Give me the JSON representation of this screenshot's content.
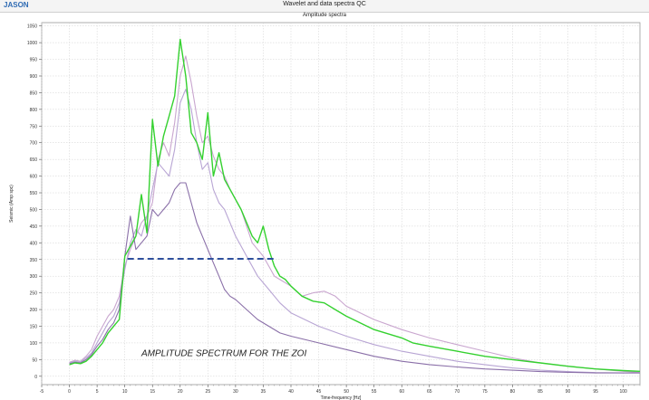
{
  "window": {
    "logo": "JASON",
    "title": "Wavelet and data spectra QC"
  },
  "chart_data": {
    "type": "line",
    "title": "Amplitude spectra",
    "xlabel": "Time-frequency [Hz]",
    "ylabel": "Seismic  (Amp spc)",
    "xlim": [
      -5,
      103
    ],
    "ylim": [
      -25,
      1060
    ],
    "xticks": [
      -5,
      0,
      5,
      10,
      15,
      20,
      25,
      30,
      35,
      40,
      45,
      50,
      55,
      60,
      65,
      70,
      75,
      80,
      85,
      90,
      95,
      100
    ],
    "yticks": [
      0,
      50,
      100,
      150,
      200,
      250,
      300,
      350,
      400,
      450,
      500,
      550,
      600,
      650,
      700,
      750,
      800,
      850,
      900,
      950,
      1000,
      1050
    ],
    "grid": true,
    "series": [
      {
        "color": "#c9a6cf",
        "x": [
          0,
          1,
          2,
          3,
          4,
          5,
          6,
          7,
          8,
          9,
          10,
          11,
          12,
          13,
          14,
          15,
          16,
          17,
          18,
          19,
          20,
          21,
          22,
          23,
          24,
          25,
          26,
          27,
          28,
          29,
          30,
          31,
          32,
          33,
          34,
          35,
          36,
          37,
          38,
          40,
          42,
          44,
          46,
          48,
          50,
          55,
          60,
          65,
          70,
          75,
          80,
          85,
          90,
          95,
          100,
          103
        ],
        "y": [
          42,
          48,
          45,
          60,
          80,
          120,
          150,
          180,
          200,
          240,
          330,
          380,
          420,
          460,
          480,
          520,
          650,
          700,
          660,
          760,
          900,
          960,
          880,
          780,
          700,
          720,
          660,
          620,
          600,
          560,
          530,
          500,
          450,
          400,
          380,
          360,
          330,
          300,
          290,
          270,
          240,
          250,
          255,
          240,
          210,
          170,
          140,
          115,
          95,
          75,
          55,
          40,
          30,
          22,
          15,
          12
        ]
      },
      {
        "color": "#b8a5d4",
        "x": [
          0,
          1,
          2,
          3,
          4,
          5,
          6,
          7,
          8,
          9,
          10,
          11,
          12,
          13,
          14,
          15,
          16,
          17,
          18,
          19,
          20,
          21,
          22,
          23,
          24,
          25,
          26,
          27,
          28,
          29,
          30,
          32,
          34,
          36,
          38,
          40,
          45,
          50,
          55,
          60,
          65,
          70,
          75,
          80,
          85,
          90,
          95,
          100,
          103
        ],
        "y": [
          40,
          45,
          42,
          55,
          70,
          100,
          130,
          160,
          180,
          220,
          320,
          400,
          440,
          420,
          480,
          560,
          640,
          620,
          600,
          680,
          820,
          860,
          800,
          700,
          620,
          640,
          560,
          520,
          500,
          460,
          420,
          360,
          300,
          260,
          220,
          190,
          150,
          120,
          95,
          75,
          60,
          45,
          35,
          25,
          18,
          14,
          11,
          10,
          10
        ]
      },
      {
        "color": "#8a6fa8",
        "x": [
          0,
          1,
          2,
          3,
          4,
          5,
          6,
          7,
          8,
          9,
          10,
          11,
          12,
          13,
          14,
          15,
          16,
          17,
          18,
          19,
          20,
          21,
          22,
          23,
          24,
          25,
          26,
          27,
          28,
          29,
          30,
          32,
          34,
          36,
          38,
          40,
          45,
          50,
          55,
          60,
          65,
          70,
          75,
          80,
          85,
          90,
          95,
          100,
          103
        ],
        "y": [
          38,
          42,
          40,
          50,
          65,
          90,
          110,
          140,
          160,
          200,
          360,
          480,
          380,
          400,
          420,
          500,
          480,
          500,
          520,
          560,
          580,
          580,
          520,
          460,
          420,
          380,
          340,
          300,
          260,
          240,
          230,
          200,
          170,
          150,
          130,
          120,
          100,
          80,
          60,
          45,
          35,
          28,
          22,
          18,
          14,
          12,
          10,
          10,
          10
        ]
      },
      {
        "color": "#34d12f",
        "x": [
          0,
          1,
          2,
          3,
          4,
          5,
          6,
          7,
          8,
          9,
          10,
          11,
          12,
          13,
          14,
          15,
          16,
          17,
          18,
          19,
          20,
          21,
          22,
          23,
          24,
          25,
          26,
          27,
          28,
          29,
          30,
          31,
          32,
          33,
          34,
          35,
          36,
          37,
          38,
          39,
          40,
          42,
          44,
          46,
          48,
          50,
          55,
          60,
          62,
          65,
          70,
          75,
          80,
          85,
          90,
          95,
          100,
          103
        ],
        "y": [
          35,
          40,
          38,
          45,
          60,
          80,
          100,
          130,
          150,
          170,
          360,
          390,
          420,
          545,
          430,
          770,
          630,
          720,
          780,
          840,
          1010,
          900,
          730,
          700,
          650,
          790,
          600,
          670,
          590,
          560,
          530,
          500,
          460,
          420,
          400,
          450,
          380,
          330,
          300,
          290,
          270,
          240,
          225,
          220,
          200,
          180,
          140,
          115,
          100,
          90,
          75,
          60,
          50,
          40,
          30,
          22,
          17,
          15
        ]
      }
    ],
    "reference_line": {
      "x": [
        10.5,
        37.5
      ],
      "y": 352,
      "color": "#2e4f9c",
      "style": "dashed"
    },
    "annotation": {
      "text": "AMPLITUDE SPECTRUM FOR THE ZOI",
      "x": 13,
      "y": 60
    }
  }
}
